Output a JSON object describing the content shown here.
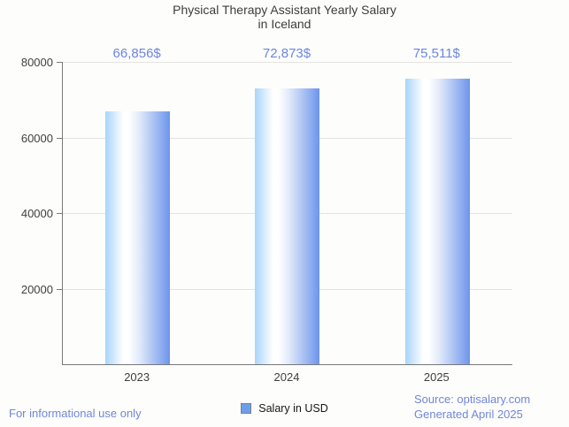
{
  "title": {
    "line1": "Physical Therapy Assistant Yearly Salary",
    "line2": "in Iceland"
  },
  "chart_data": {
    "type": "bar",
    "title": "Physical Therapy Assistant Yearly Salary in Iceland",
    "categories": [
      "2023",
      "2024",
      "2025"
    ],
    "values": [
      66856,
      72873,
      75511
    ],
    "value_labels": [
      "66,856$",
      "72,873$",
      "75,511$"
    ],
    "series": [
      {
        "name": "Salary in USD",
        "values": [
          66856,
          72873,
          75511
        ]
      }
    ],
    "xlabel": "",
    "ylabel": "",
    "ylim": [
      0,
      80000
    ],
    "yticks": [
      20000,
      40000,
      60000,
      80000
    ],
    "ytick_labels": [
      "20000",
      "40000",
      "60000",
      "80000"
    ],
    "grid": true,
    "legend_position": "bottom"
  },
  "legend": {
    "label": "Salary in USD"
  },
  "footer": {
    "disclaimer": "For informational use only",
    "source": "Source: optisalary.com",
    "generated": "Generated April 2025"
  },
  "colors": {
    "background": "#fdfdfb",
    "title_text": "#3d3d3d",
    "axis_text": "#404040",
    "axis_line": "#787878",
    "gridline": "#e3e3e1",
    "value_label_blue": "#6b85e2",
    "footer_blue": "#7187d9",
    "legend_swatch": "#6d9eeb",
    "bar_gradient_left": "#a8d5fa",
    "bar_gradient_mid": "#ffffff",
    "bar_gradient_right": "#6d95ec"
  }
}
